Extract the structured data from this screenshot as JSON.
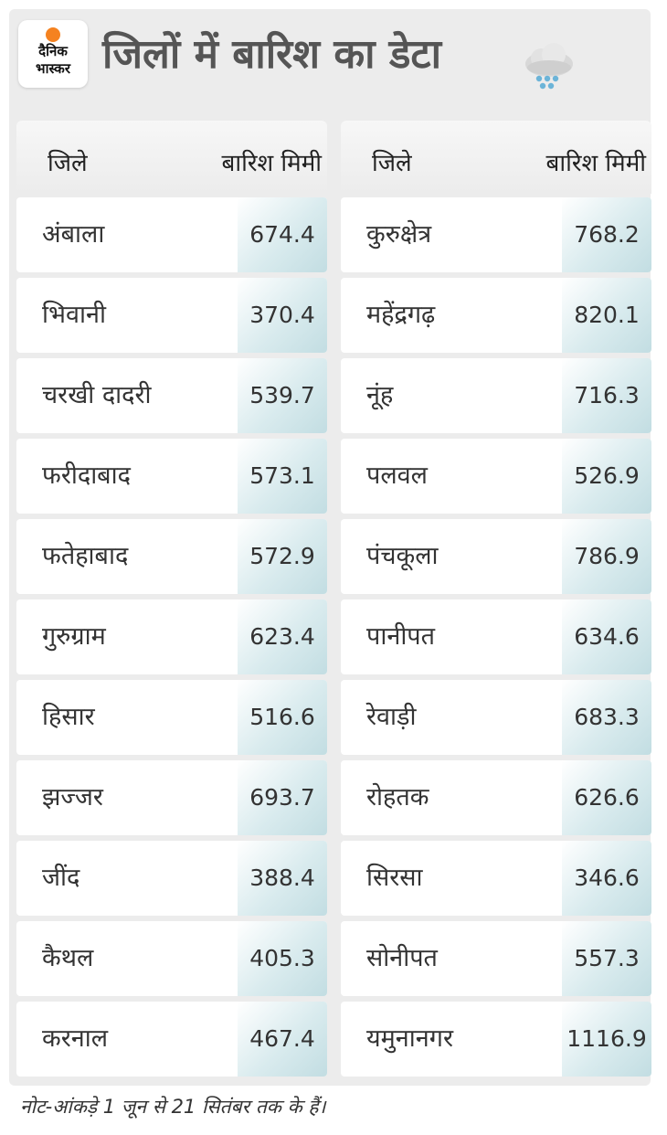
{
  "logo": {
    "line1": "दैनिक",
    "line2": "भास्कर"
  },
  "title": "जिलों में बारिश का डेटा",
  "header": {
    "district": "जिले",
    "rain": "बारिश मिमी"
  },
  "left_rows": [
    {
      "district": "अंबाला",
      "rain": "674.4"
    },
    {
      "district": "भिवानी",
      "rain": "370.4"
    },
    {
      "district": "चरखी दादरी",
      "rain": "539.7"
    },
    {
      "district": "फरीदाबाद",
      "rain": "573.1"
    },
    {
      "district": "फतेहाबाद",
      "rain": "572.9"
    },
    {
      "district": "गुरुग्राम",
      "rain": "623.4"
    },
    {
      "district": "हिसार",
      "rain": "516.6"
    },
    {
      "district": "झज्जर",
      "rain": "693.7"
    },
    {
      "district": "जींद",
      "rain": "388.4"
    },
    {
      "district": "कैथल",
      "rain": "405.3"
    },
    {
      "district": "करनाल",
      "rain": "467.4"
    }
  ],
  "right_rows": [
    {
      "district": "कुरुक्षेत्र",
      "rain": "768.2"
    },
    {
      "district": "महेंद्रगढ़",
      "rain": "820.1"
    },
    {
      "district": "नूंह",
      "rain": "716.3"
    },
    {
      "district": "पलवल",
      "rain": "526.9"
    },
    {
      "district": "पंचकूला",
      "rain": "786.9"
    },
    {
      "district": "पानीपत",
      "rain": "634.6"
    },
    {
      "district": "रेवाड़ी",
      "rain": "683.3"
    },
    {
      "district": "रोहतक",
      "rain": "626.6"
    },
    {
      "district": "सिरसा",
      "rain": "346.6"
    },
    {
      "district": "सोनीपत",
      "rain": "557.3"
    },
    {
      "district": "यमुनानगर",
      "rain": "1116.9"
    }
  ],
  "note": "नोट-आंकड़े 1 जून से 21 सितंबर तक के हैं।",
  "icons": {
    "logo": "sun-dot-icon",
    "weather": "rain-cloud-icon"
  },
  "colors": {
    "logo_accent": "#f58220",
    "value_cell": "#c2dde2",
    "background": "#ececec"
  }
}
